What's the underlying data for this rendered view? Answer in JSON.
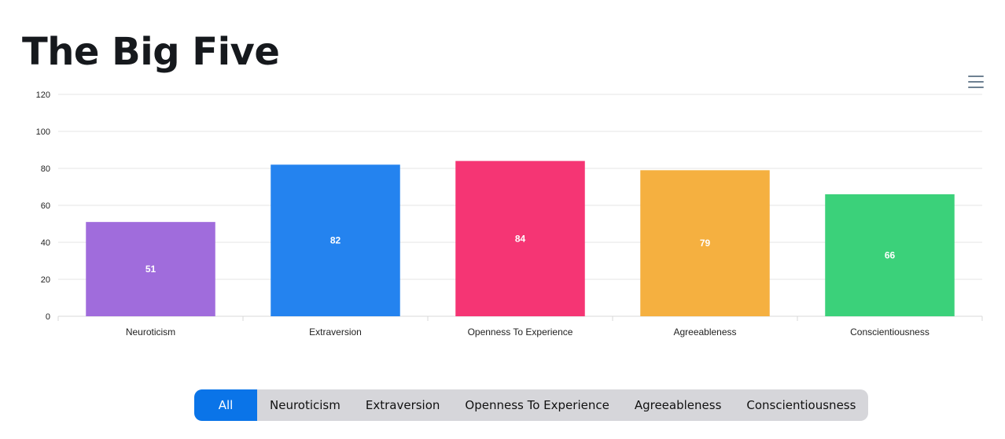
{
  "page": {
    "title": "The Big Five"
  },
  "toolbar": {
    "menu_icon": "hamburger-menu-icon"
  },
  "filters": {
    "tabs": [
      {
        "label": "All",
        "active": true
      },
      {
        "label": "Neuroticism",
        "active": false
      },
      {
        "label": "Extraversion",
        "active": false
      },
      {
        "label": "Openness To Experience",
        "active": false
      },
      {
        "label": "Agreeableness",
        "active": false
      },
      {
        "label": "Conscientiousness",
        "active": false
      }
    ],
    "active_color": "#0a74e8"
  },
  "chart_data": {
    "type": "bar",
    "title": "",
    "xlabel": "",
    "ylabel": "",
    "categories": [
      "Neuroticism",
      "Extraversion",
      "Openness To Experience",
      "Agreeableness",
      "Conscientiousness"
    ],
    "values": [
      51,
      82,
      84,
      79,
      66
    ],
    "colors": [
      "#a06cdc",
      "#2483ef",
      "#f53574",
      "#f5b040",
      "#3bd17a"
    ],
    "ylim": [
      0,
      120
    ],
    "yticks": [
      0,
      20,
      40,
      60,
      80,
      100,
      120
    ],
    "grid": true,
    "legend": "none",
    "data_labels": true
  }
}
